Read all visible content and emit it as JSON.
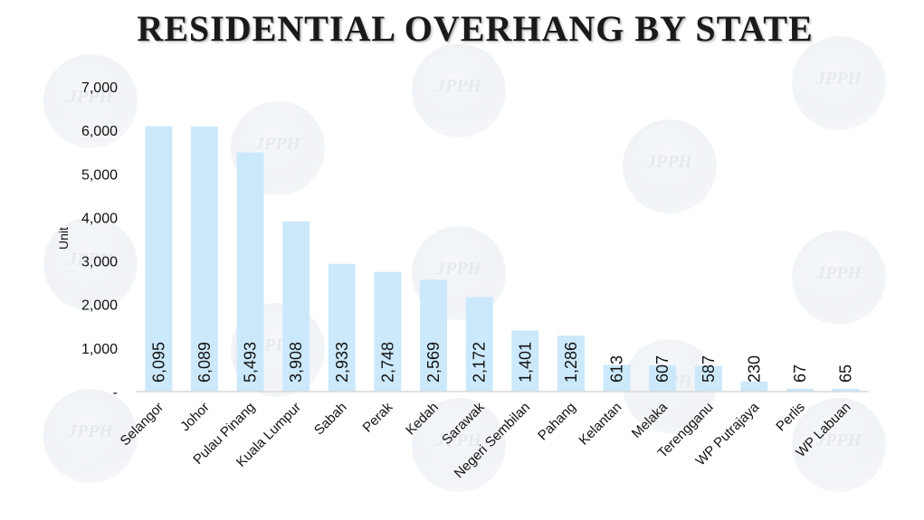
{
  "chart_data": {
    "type": "bar",
    "title": "RESIDENTIAL OVERHANG BY STATE",
    "ylabel": "Unit",
    "xlabel": "",
    "categories": [
      "Selangor",
      "Johor",
      "Pulau Pinang",
      "Kuala Lumpur",
      "Sabah",
      "Perak",
      "Kedah",
      "Sarawak",
      "Negeri Sembilan",
      "Pahang",
      "Kelantan",
      "Melaka",
      "Terengganu",
      "WP Putrajaya",
      "Perlis",
      "WP Labuan"
    ],
    "values": [
      6095,
      6089,
      5493,
      3908,
      2933,
      2748,
      2569,
      2172,
      1401,
      1286,
      613,
      607,
      587,
      230,
      67,
      65
    ],
    "data_labels": [
      "6,095",
      "6,089",
      "5,493",
      "3,908",
      "2,933",
      "2,748",
      "2,569",
      "2,172",
      "1,401",
      "1,286",
      "613",
      "607",
      "587",
      "230",
      "67",
      "65"
    ],
    "ylim": [
      0,
      7000
    ],
    "yticks": [
      0,
      1000,
      2000,
      3000,
      4000,
      5000,
      6000,
      7000
    ],
    "ytick_labels": [
      "-",
      "1,000",
      "2,000",
      "3,000",
      "4,000",
      "5,000",
      "6,000",
      "7,000"
    ],
    "grid": false,
    "bar_color": "#cce9fb",
    "axis_color": "#d9d9d9",
    "watermark_text": "JPPH"
  }
}
